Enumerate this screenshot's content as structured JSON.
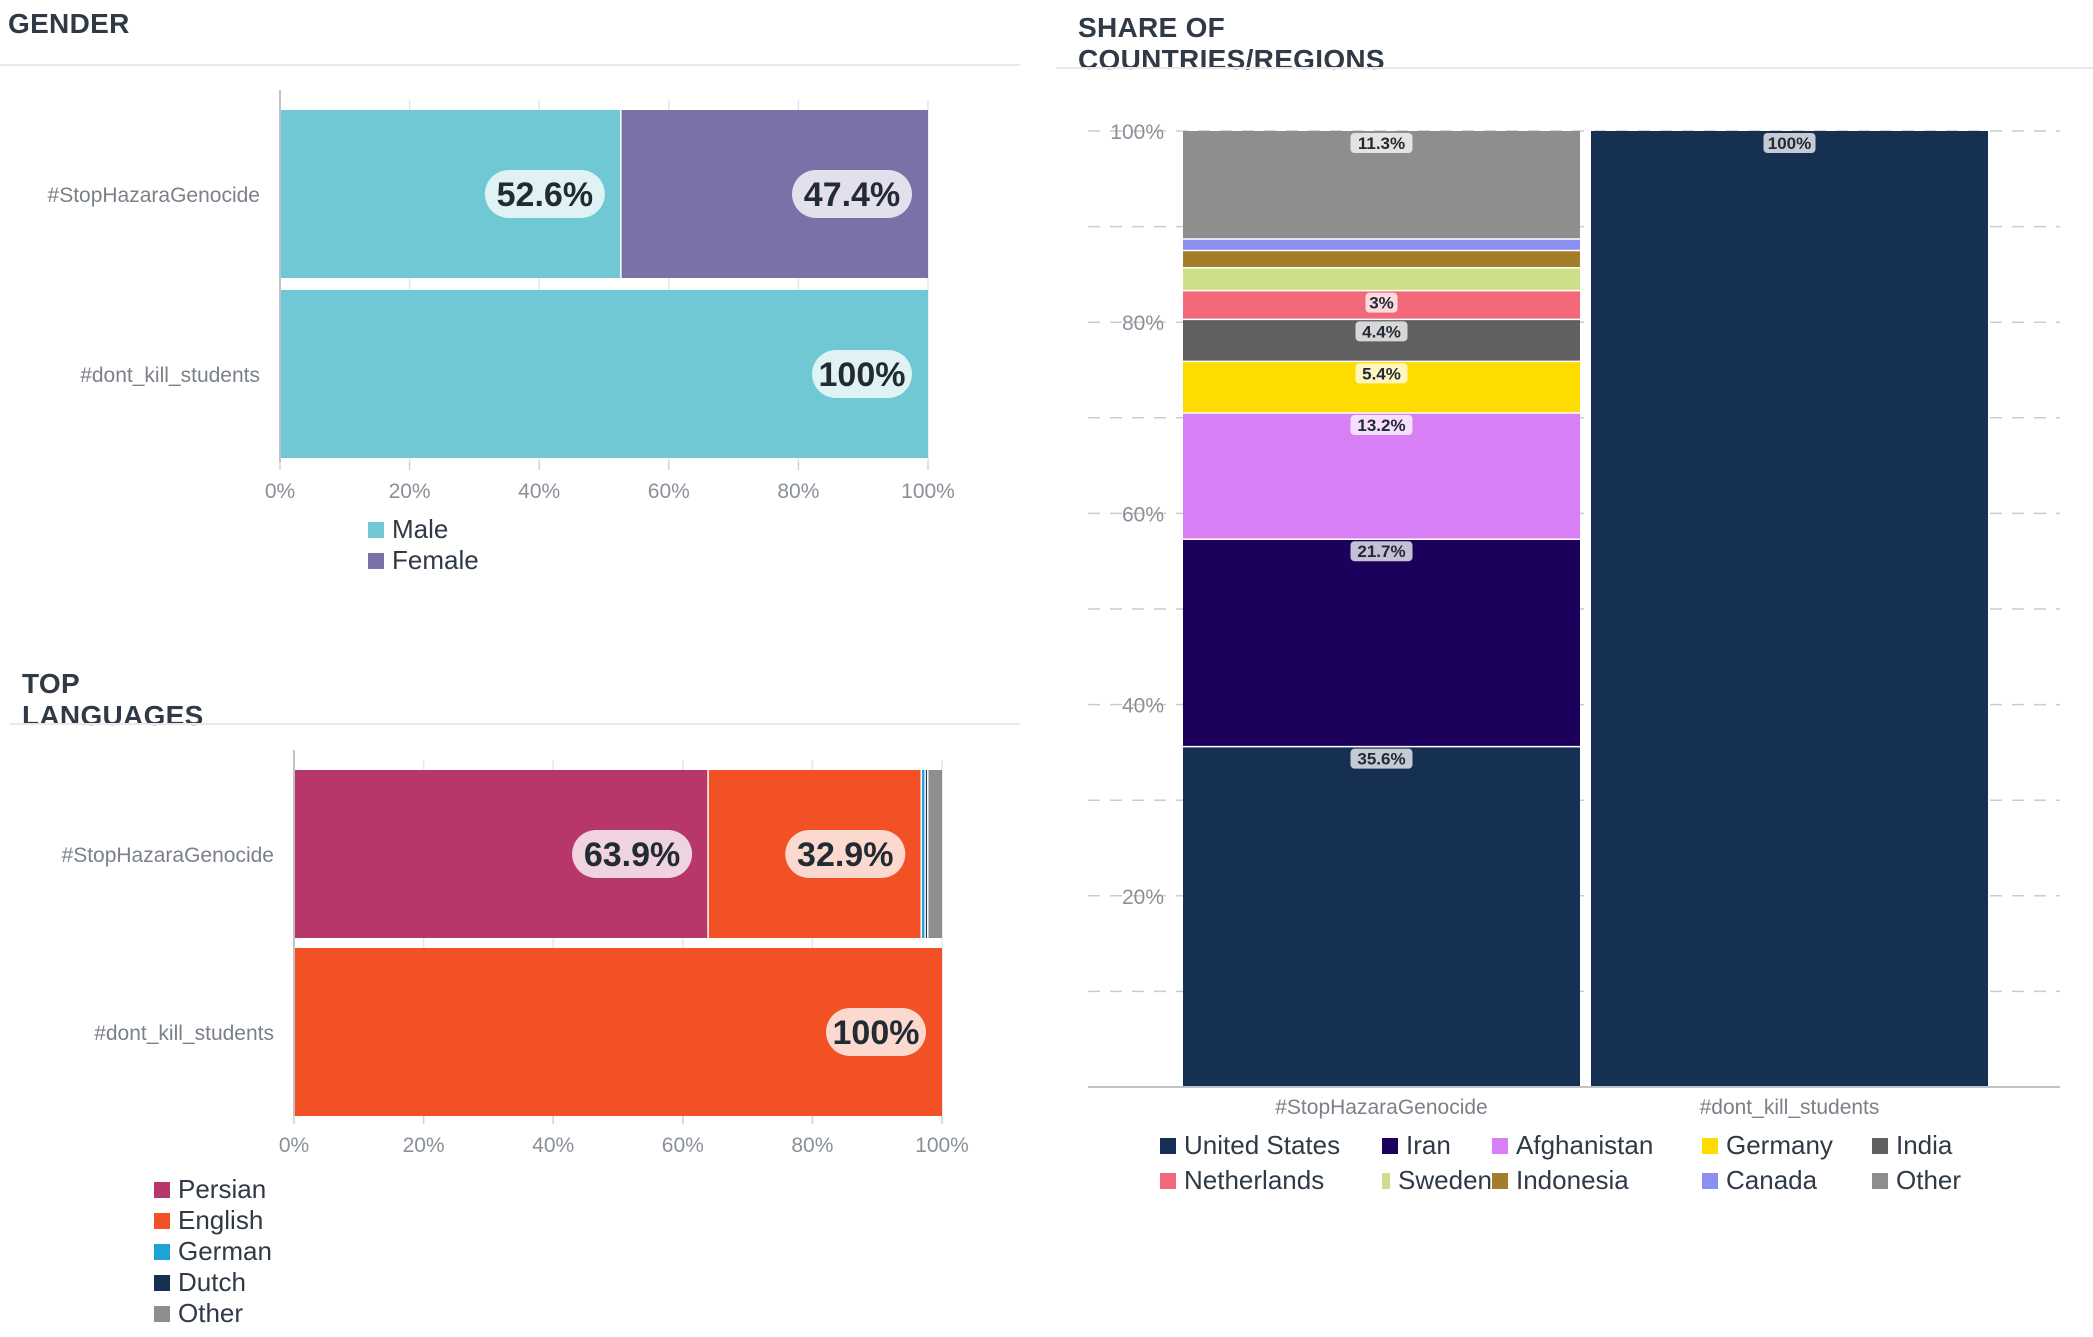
{
  "panels": {
    "gender": {
      "title": "GENDER"
    },
    "languages": {
      "title": "TOP LANGUAGES"
    },
    "countries": {
      "title": "SHARE OF COUNTRIES/REGIONS"
    }
  },
  "chart_data": [
    {
      "id": "gender",
      "type": "bar",
      "orientation": "horizontal",
      "stacked": true,
      "categories": [
        "#StopHazaraGenocide",
        "#dont_kill_students"
      ],
      "series": [
        {
          "name": "Male",
          "color": "#6fc8d3",
          "values": [
            52.6,
            100
          ]
        },
        {
          "name": "Female",
          "color": "#7b71a7",
          "values": [
            47.4,
            0
          ]
        }
      ],
      "data_labels": [
        {
          "category": 0,
          "series": 0,
          "text": "52.6%"
        },
        {
          "category": 0,
          "series": 1,
          "text": "47.4%"
        },
        {
          "category": 1,
          "series": 0,
          "text": "100%"
        }
      ],
      "xlim": [
        0,
        100
      ],
      "x_ticks": [
        "0%",
        "20%",
        "40%",
        "60%",
        "80%",
        "100%"
      ],
      "grid": true,
      "legend": "bottom"
    },
    {
      "id": "languages",
      "type": "bar",
      "orientation": "horizontal",
      "stacked": true,
      "categories": [
        "#StopHazaraGenocide",
        "#dont_kill_students"
      ],
      "series": [
        {
          "name": "Persian",
          "color": "#b8376a",
          "values": [
            63.9,
            0
          ]
        },
        {
          "name": "English",
          "color": "#f15124",
          "values": [
            32.9,
            100
          ]
        },
        {
          "name": "German",
          "color": "#1ea3d6",
          "values": [
            0.6,
            0
          ]
        },
        {
          "name": "Dutch",
          "color": "#163053",
          "values": [
            0.4,
            0
          ]
        },
        {
          "name": "Other",
          "color": "#8e8e8e",
          "values": [
            2.2,
            0
          ]
        }
      ],
      "data_labels": [
        {
          "category": 0,
          "series": 0,
          "text": "63.9%"
        },
        {
          "category": 0,
          "series": 1,
          "text": "32.9%"
        },
        {
          "category": 1,
          "series": 1,
          "text": "100%"
        }
      ],
      "xlim": [
        0,
        100
      ],
      "x_ticks": [
        "0%",
        "20%",
        "40%",
        "60%",
        "80%",
        "100%"
      ],
      "grid": true,
      "legend": "bottom"
    },
    {
      "id": "countries",
      "type": "bar",
      "orientation": "vertical",
      "stacked": true,
      "categories": [
        "#StopHazaraGenocide",
        "#dont_kill_students"
      ],
      "series": [
        {
          "name": "United States",
          "color": "#163053",
          "values": [
            35.6,
            100
          ],
          "labels": [
            "35.6%",
            "100%"
          ]
        },
        {
          "name": "Iran",
          "color": "#1c015c",
          "values": [
            21.7,
            0
          ],
          "labels": [
            "21.7%",
            ""
          ]
        },
        {
          "name": "Afghanistan",
          "color": "#d87ff5",
          "values": [
            13.2,
            0
          ],
          "labels": [
            "13.2%",
            ""
          ]
        },
        {
          "name": "Germany",
          "color": "#ffdc00",
          "values": [
            5.4,
            0
          ],
          "labels": [
            "5.4%",
            ""
          ]
        },
        {
          "name": "India",
          "color": "#606060",
          "values": [
            4.4,
            0
          ],
          "labels": [
            "4.4%",
            ""
          ]
        },
        {
          "name": "Netherlands",
          "color": "#f2697a",
          "values": [
            3,
            0
          ],
          "labels": [
            "3%",
            ""
          ]
        },
        {
          "name": "Sweden",
          "color": "#cde089",
          "values": [
            2.4,
            0
          ],
          "labels": [
            "",
            ""
          ]
        },
        {
          "name": "Indonesia",
          "color": "#a47d2a",
          "values": [
            1.8,
            0
          ],
          "labels": [
            "",
            ""
          ]
        },
        {
          "name": "Canada",
          "color": "#8a8ff0",
          "values": [
            1.2,
            0
          ],
          "labels": [
            "",
            ""
          ]
        },
        {
          "name": "Other",
          "color": "#8e8e8e",
          "values": [
            11.3,
            0
          ],
          "labels": [
            "11.3%",
            ""
          ]
        }
      ],
      "ylim": [
        0,
        100
      ],
      "y_ticks": [
        "20%",
        "40%",
        "60%",
        "80%",
        "100%"
      ],
      "grid": "dashed",
      "legend": "bottom"
    }
  ]
}
